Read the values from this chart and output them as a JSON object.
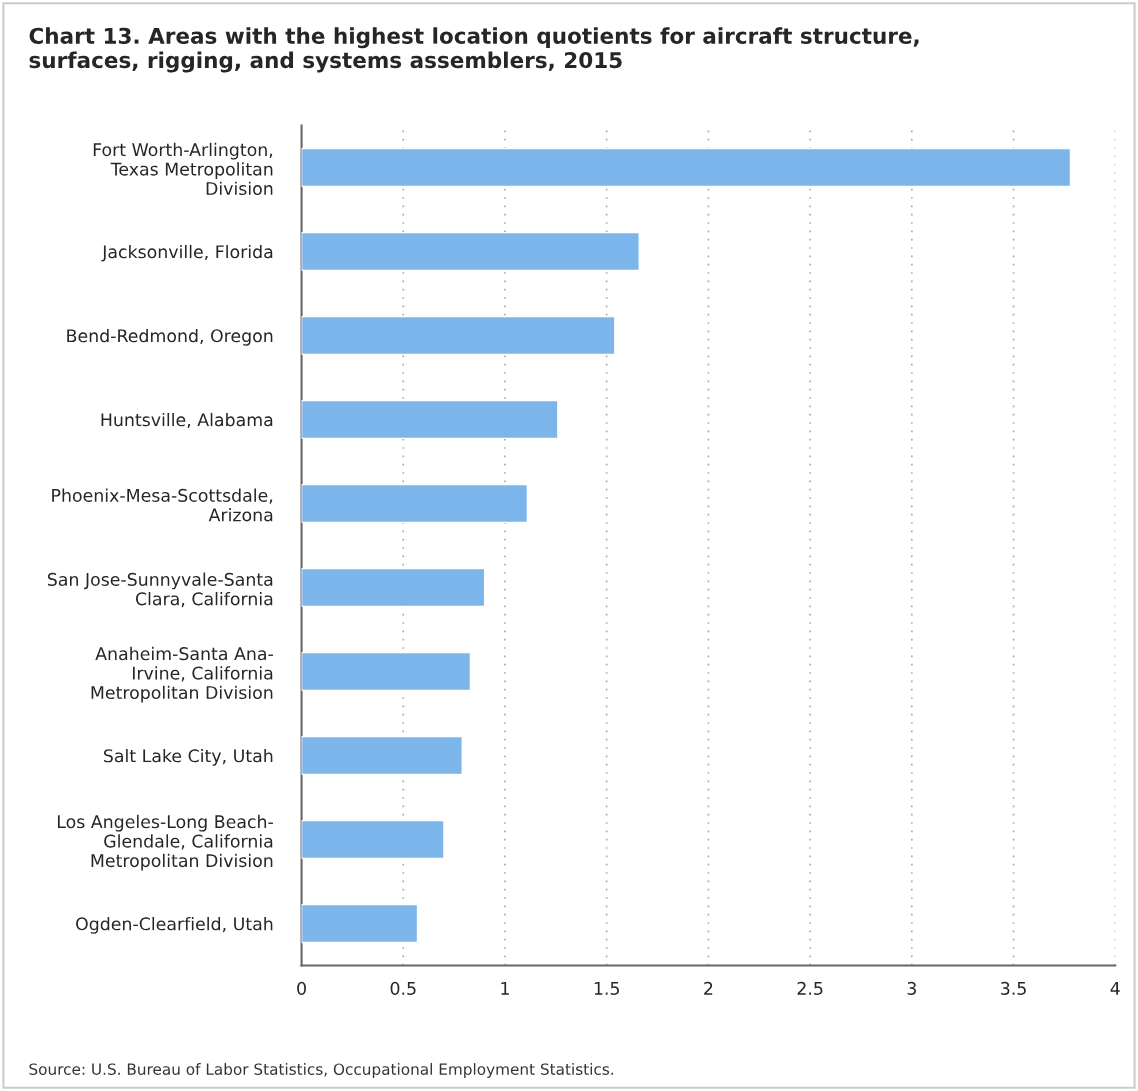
{
  "chart_data": {
    "type": "bar",
    "orientation": "horizontal",
    "title": "Chart 13. Areas with the highest location quotients for aircraft structure,\nsurfaces, rigging, and systems assemblers, 2015",
    "categories": [
      "Fort Worth-Arlington,\nTexas Metropolitan\nDivision",
      "Jacksonville, Florida",
      "Bend-Redmond, Oregon",
      "Huntsville, Alabama",
      "Phoenix-Mesa-Scottsdale,\nArizona",
      "San Jose-Sunnyvale-Santa\nClara, California",
      "Anaheim-Santa Ana-\nIrvine, California\nMetropolitan Division",
      "Salt Lake City, Utah",
      "Los Angeles-Long Beach-\nGlendale, California\nMetropolitan Division",
      "Ogden-Clearfield, Utah"
    ],
    "values": [
      3.78,
      1.66,
      1.54,
      1.26,
      1.11,
      0.9,
      0.83,
      0.79,
      0.7,
      0.57
    ],
    "color": "#7cb5ec",
    "xlim": [
      0,
      4
    ],
    "xticks": [
      0,
      0.5,
      1,
      1.5,
      2,
      2.5,
      3,
      3.5,
      4
    ],
    "grid": "x",
    "annotations": [
      "Source: U.S. Bureau of Labor Statistics, Occupational Employment Statistics."
    ]
  }
}
